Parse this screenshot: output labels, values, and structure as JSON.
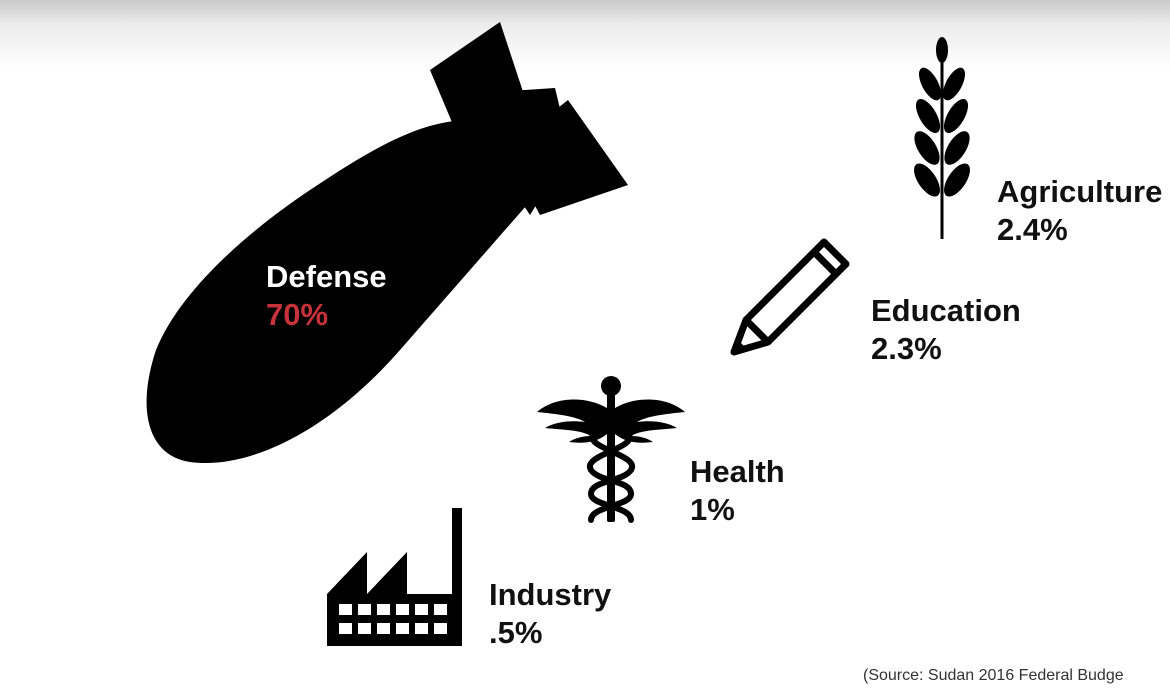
{
  "categories": [
    {
      "key": "defense",
      "name": "Defense",
      "value": "70%",
      "icon": "bomb-icon"
    },
    {
      "key": "agriculture",
      "name": "Agriculture",
      "value": "2.4%",
      "icon": "wheat-icon"
    },
    {
      "key": "education",
      "name": "Education",
      "value": "2.3%",
      "icon": "pencil-icon"
    },
    {
      "key": "health",
      "name": "Health",
      "value": "1%",
      "icon": "caduceus-icon"
    },
    {
      "key": "industry",
      "name": "Industry",
      "value": ".5%",
      "icon": "factory-icon"
    }
  ],
  "source": "(Source: Sudan 2016 Federal Budge",
  "colors": {
    "background": "#ffffff",
    "icons": "#000000",
    "defense_value": "#c8323a",
    "text": "#111111"
  }
}
